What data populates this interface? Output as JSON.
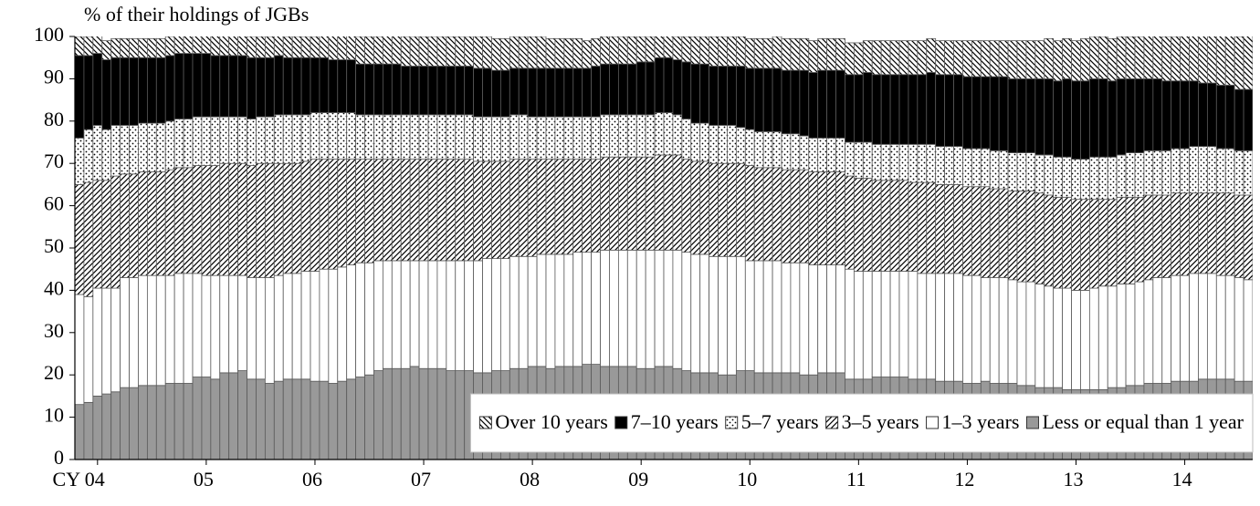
{
  "chart_data": {
    "type": "stacked-bar",
    "y_axis_label": "% of their holdings of JGBs",
    "categories": [
      null,
      null,
      "CY 04",
      null,
      null,
      null,
      null,
      null,
      null,
      null,
      null,
      null,
      null,
      null,
      "05",
      null,
      null,
      null,
      null,
      null,
      null,
      null,
      null,
      null,
      null,
      null,
      "06",
      null,
      null,
      null,
      null,
      null,
      null,
      null,
      null,
      null,
      null,
      null,
      "07",
      null,
      null,
      null,
      null,
      null,
      null,
      null,
      null,
      null,
      null,
      null,
      "08",
      null,
      null,
      null,
      null,
      null,
      null,
      null,
      null,
      null,
      null,
      null,
      "09",
      null,
      null,
      null,
      null,
      null,
      null,
      null,
      null,
      null,
      null,
      null,
      "10",
      null,
      null,
      null,
      null,
      null,
      null,
      null,
      null,
      null,
      null,
      null,
      "11",
      null,
      null,
      null,
      null,
      null,
      null,
      null,
      null,
      null,
      null,
      null,
      "12",
      null,
      null,
      null,
      null,
      null,
      null,
      null,
      null,
      null,
      null,
      null,
      "13",
      null,
      null,
      null,
      null,
      null,
      null,
      null,
      null,
      null,
      null,
      null,
      "14",
      null,
      null,
      null,
      null,
      null,
      null,
      null
    ],
    "ylim": [
      0,
      100
    ],
    "yticks": [
      0,
      10,
      20,
      30,
      40,
      50,
      60,
      70,
      80,
      90,
      100
    ],
    "legend": "lower right",
    "series": [
      {
        "name": "Less or equal than 1 year",
        "color": "#999999",
        "pattern": "solid",
        "values": [
          13,
          13.5,
          15,
          15.5,
          16,
          17,
          17,
          17.5,
          17.5,
          17.5,
          18,
          18,
          18,
          19.5,
          19.5,
          19,
          20.5,
          20.5,
          21,
          19,
          19,
          18,
          18.5,
          19,
          19,
          19,
          18.5,
          18.5,
          18,
          18.5,
          19,
          19.5,
          20,
          21,
          21.5,
          21.5,
          21.5,
          22,
          21.5,
          21.5,
          21.5,
          21,
          21,
          21,
          20.5,
          20.5,
          21,
          21,
          21.5,
          21.5,
          22,
          22,
          21.5,
          22,
          22,
          22,
          22.5,
          22.5,
          22,
          22,
          22,
          22,
          21.5,
          21.5,
          22,
          22,
          21.5,
          21,
          20.5,
          20.5,
          20.5,
          20,
          20,
          21,
          21,
          20.5,
          20.5,
          20.5,
          20.5,
          20.5,
          20,
          20,
          20.5,
          20.5,
          20.5,
          19,
          19,
          19,
          19.5,
          19.5,
          19.5,
          19.5,
          19,
          19,
          19,
          18.5,
          18.5,
          18.5,
          18,
          18,
          18.5,
          18,
          18,
          18,
          17.5,
          17.5,
          17,
          17,
          17,
          16.5,
          16.5,
          16.5,
          16.5,
          16.5,
          17,
          17,
          17.5,
          17.5,
          18,
          18,
          18,
          18.5,
          18.5,
          18.5,
          19,
          19,
          19,
          19,
          18.5,
          18.5
        ]
      },
      {
        "name": "1–3 years",
        "color": "#ffffff",
        "pattern": "solid",
        "values": [
          26,
          25,
          25.5,
          25,
          24.5,
          26,
          26,
          26,
          26,
          26,
          25.5,
          26,
          26,
          24.5,
          24,
          24.5,
          23,
          23,
          22.5,
          24,
          24,
          25,
          25,
          25,
          25,
          25.5,
          26,
          26.5,
          27,
          27,
          27,
          27,
          26.5,
          26,
          25.5,
          25.5,
          25.5,
          25,
          25.5,
          25.5,
          25.5,
          26,
          26,
          26,
          26.5,
          27,
          26.5,
          26.5,
          26.5,
          26.5,
          26,
          26.5,
          27,
          26.5,
          26.5,
          27,
          26.5,
          26.5,
          27.5,
          27.5,
          27.5,
          27.5,
          28,
          28,
          27.5,
          27.5,
          28,
          28,
          28,
          28,
          27.5,
          28,
          28,
          27,
          26,
          26.5,
          26.5,
          26.5,
          26,
          26,
          26.5,
          26,
          25.5,
          25.5,
          25.5,
          26,
          25.5,
          25.5,
          25,
          25,
          25,
          25,
          25.5,
          25,
          25,
          25.5,
          25.5,
          25.5,
          25.5,
          25.5,
          24.5,
          25,
          25,
          24.5,
          24.5,
          24.5,
          24.5,
          24,
          23.5,
          24,
          23.5,
          23.5,
          24,
          24.5,
          24,
          24.5,
          24,
          24.5,
          24.5,
          25,
          25,
          25,
          25,
          25.5,
          25,
          25,
          24.5,
          24.5,
          24.5,
          24
        ]
      },
      {
        "name": "3–5 years",
        "color": "#000000",
        "pattern": "hatch",
        "values": [
          26,
          27,
          25.5,
          25.5,
          26.5,
          24.5,
          24.5,
          24.5,
          24.5,
          24.5,
          25,
          25,
          25,
          25.5,
          26,
          26,
          26.5,
          26.5,
          26.5,
          26.5,
          27,
          27,
          26.5,
          26,
          26,
          26,
          26.5,
          26,
          26,
          25.5,
          25,
          24.5,
          24.5,
          24,
          24,
          24,
          24,
          24,
          24,
          24,
          24,
          24,
          24,
          24,
          23.5,
          23,
          23,
          23,
          23,
          23,
          23,
          22.5,
          22.5,
          22.5,
          22.5,
          22,
          22,
          22,
          22,
          22,
          22,
          22,
          22,
          22,
          22.5,
          22.5,
          22.5,
          22,
          22,
          22,
          22,
          22,
          22,
          22,
          22.5,
          22,
          22,
          22,
          22,
          22,
          22,
          22,
          22,
          22,
          22,
          22,
          22,
          22,
          21.5,
          21.5,
          21.5,
          21.5,
          21,
          21.5,
          21.5,
          21,
          21,
          21,
          21,
          21,
          21.5,
          21,
          21,
          21,
          21.5,
          21.5,
          21.5,
          21.5,
          21.5,
          21.5,
          21.5,
          21.5,
          21,
          20.5,
          20.5,
          20.5,
          20.5,
          20,
          20,
          19.5,
          19.5,
          19.5,
          19.5,
          19,
          19,
          19,
          19.5,
          19.5,
          19.5,
          20
        ]
      },
      {
        "name": "5–7 years",
        "color": "#000000",
        "pattern": "dots",
        "values": [
          11,
          12.5,
          13,
          12,
          12,
          11.5,
          11.5,
          11.5,
          11.5,
          11.5,
          11.5,
          11.5,
          11.5,
          11.5,
          11.5,
          11.5,
          11,
          11,
          11,
          11,
          11,
          11,
          11.5,
          11.5,
          11.5,
          11,
          11,
          11,
          11,
          11,
          11,
          10.5,
          10.5,
          10.5,
          10.5,
          10.5,
          10.5,
          10.5,
          10.5,
          10.5,
          10.5,
          10.5,
          10.5,
          10.5,
          10.5,
          10.5,
          10.5,
          10.5,
          10.5,
          10.5,
          10,
          10,
          10,
          10,
          10,
          10,
          10,
          10,
          10,
          10,
          10,
          10,
          10,
          10,
          10,
          10,
          9.5,
          9.5,
          9,
          9,
          9,
          9,
          9,
          8.5,
          8.5,
          8.5,
          8.5,
          8.5,
          8.5,
          8.5,
          8,
          8,
          8,
          8,
          8,
          8,
          8.5,
          8.5,
          8.5,
          8.5,
          8.5,
          8.5,
          9,
          9,
          9,
          9,
          9,
          9,
          9,
          9,
          9,
          9,
          9,
          9,
          9,
          9,
          9,
          9.5,
          9.5,
          9.5,
          9.5,
          9.5,
          10,
          10,
          10,
          10,
          10.5,
          10.5,
          10.5,
          10.5,
          10.5,
          10.5,
          10.5,
          11,
          11,
          11,
          10.5,
          10.5,
          10.5,
          10.5
        ]
      },
      {
        "name": "7–10 years",
        "color": "#000000",
        "pattern": "solid",
        "values": [
          19.5,
          17.5,
          17,
          16.5,
          16,
          16,
          16,
          15.5,
          15.5,
          15.5,
          15.5,
          15.5,
          15.5,
          15,
          15,
          14.5,
          14.5,
          14.5,
          14.5,
          14.5,
          14,
          14,
          14,
          13.5,
          13.5,
          13.5,
          13,
          13,
          12.5,
          12.5,
          12.5,
          12,
          12,
          12,
          12,
          12,
          11.5,
          11.5,
          11.5,
          11.5,
          11.5,
          11.5,
          11.5,
          11.5,
          11.5,
          11.5,
          11,
          11,
          11,
          11,
          11.5,
          11.5,
          11.5,
          11.5,
          11.5,
          11.5,
          11.5,
          12,
          12,
          12,
          12,
          12,
          12.5,
          12.5,
          13,
          13,
          13,
          13.5,
          14,
          14,
          14,
          14,
          14,
          14.5,
          14.5,
          15,
          15,
          15,
          15,
          15,
          15.5,
          15.5,
          16,
          16,
          16,
          16,
          16,
          16.5,
          16.5,
          16.5,
          16.5,
          16.5,
          16.5,
          16.5,
          17,
          17,
          17,
          17,
          17,
          17,
          17,
          17.5,
          17.5,
          17.5,
          17.5,
          17.5,
          18,
          18,
          18,
          18.5,
          18.5,
          18.5,
          18.5,
          18.5,
          18,
          18,
          17.5,
          17.5,
          17,
          17,
          16.5,
          16,
          16,
          15.5,
          15,
          15,
          15,
          15,
          14.5,
          14.5
        ]
      },
      {
        "name": "Over 10 years",
        "color": "#000000",
        "pattern": "backhatch",
        "values": [
          4.5,
          4.5,
          4.5,
          4.5,
          4.5,
          4.5,
          4.5,
          4.5,
          4.5,
          4.5,
          4.5,
          4.5,
          4.5,
          4.5,
          4.5,
          5,
          5,
          5,
          5,
          5,
          5,
          5,
          5,
          5,
          5,
          5,
          5,
          5.5,
          6,
          6,
          6,
          6.5,
          6.5,
          6.5,
          7,
          7,
          7,
          7,
          7,
          7,
          7,
          7,
          7,
          7,
          7.5,
          7.5,
          7.5,
          7.5,
          7.5,
          7.5,
          7.5,
          7.5,
          7,
          7,
          7,
          7,
          6.5,
          6.5,
          6.5,
          6.5,
          6.5,
          6.5,
          6,
          6,
          5.5,
          5.5,
          5.5,
          6,
          6.5,
          6.5,
          7,
          7,
          7,
          7,
          7,
          7,
          7,
          7.5,
          7.5,
          7.5,
          7.5,
          7.5,
          7.5,
          7.5,
          7.5,
          7.5,
          7.5,
          7.5,
          8,
          8,
          8,
          8,
          8,
          8,
          8,
          8,
          8,
          8,
          8.5,
          8.5,
          8.5,
          8.5,
          8.5,
          9,
          9,
          9,
          9,
          9.5,
          9.5,
          9.5,
          9.5,
          10,
          10,
          10,
          10,
          10,
          10,
          10,
          10.5,
          10.5,
          10.5,
          10.5,
          11,
          11,
          11.5,
          11.5,
          12,
          12,
          12.5,
          13
        ]
      }
    ]
  }
}
